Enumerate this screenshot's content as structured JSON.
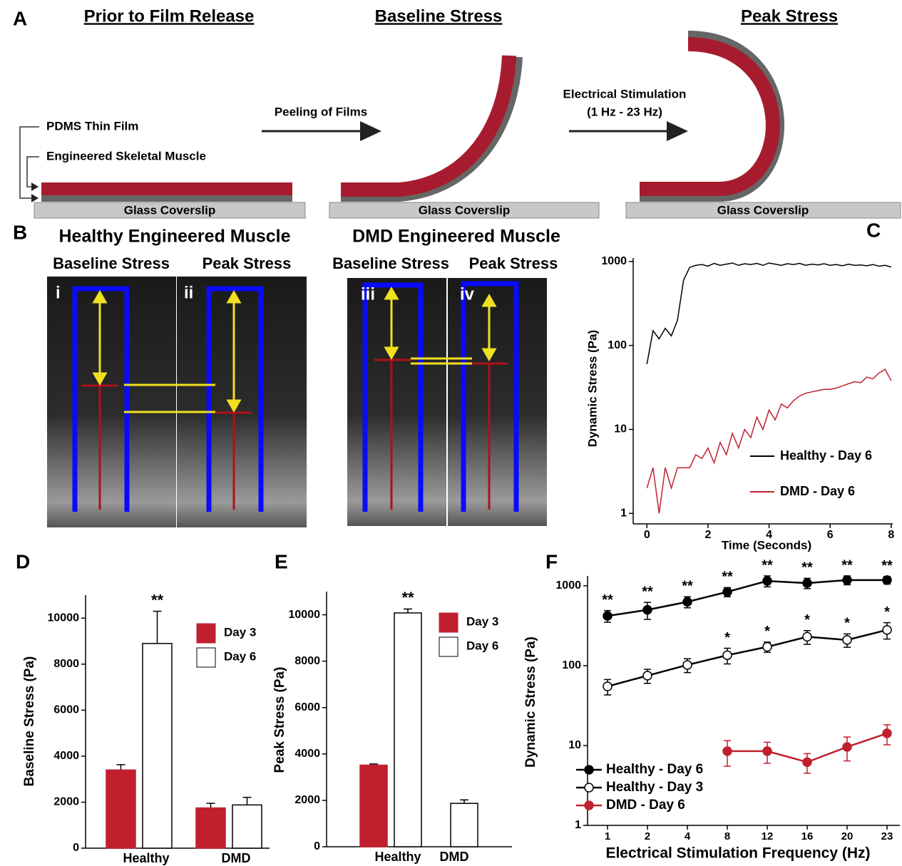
{
  "figure": {
    "panel_a": {
      "label": "A",
      "titles": [
        "Prior to Film Release",
        "Baseline Stress",
        "Peak Stress"
      ],
      "pdms": "PDMS Thin Film",
      "muscle": "Engineered Skeletal Muscle",
      "coverslip": [
        "Glass Coverslip",
        "Glass Coverslip",
        "Glass Coverslip"
      ],
      "step1": "Peeling of Films",
      "step2": [
        "Electrical Stimulation",
        "(1 Hz - 23 Hz)"
      ]
    },
    "panel_b": {
      "label": "B",
      "groups": [
        "Healthy Engineered Muscle",
        "DMD Engineered Muscle"
      ],
      "conditions": [
        "Baseline Stress",
        "Peak Stress",
        "Baseline Stress",
        "Peak Stress"
      ],
      "images": [
        "i",
        "ii",
        "iii",
        "iv"
      ]
    }
  },
  "chart_data": [
    {
      "type": "line",
      "panel_label": "C",
      "x_label": "Time (Seconds)",
      "y_label": "Dynamic Stress (Pa)",
      "log_y": true,
      "x": [
        0,
        0.2,
        0.4,
        0.6,
        0.8,
        1,
        1.2,
        1.4,
        1.6,
        1.8,
        2,
        2.2,
        2.4,
        2.6,
        2.8,
        3,
        3.2,
        3.4,
        3.6,
        3.8,
        4,
        4.2,
        4.4,
        4.6,
        4.8,
        5,
        5.2,
        5.4,
        5.6,
        5.8,
        6,
        6.2,
        6.4,
        6.6,
        6.8,
        7,
        7.2,
        7.4,
        7.6,
        7.8,
        8
      ],
      "series": [
        {
          "name": "Healthy - Day 6",
          "color": "#000000",
          "values": [
            60,
            150,
            120,
            160,
            130,
            200,
            600,
            850,
            900,
            920,
            880,
            950,
            900,
            930,
            960,
            900,
            940,
            920,
            950,
            900,
            960,
            930,
            900,
            940,
            920,
            950,
            900,
            930,
            910,
            940,
            900,
            920,
            890,
            930,
            900,
            910,
            890,
            920,
            880,
            900,
            860
          ]
        },
        {
          "name": "DMD - Day 6",
          "color": "#c0202e",
          "values": [
            2,
            3.5,
            1,
            3.5,
            2,
            3.5,
            3.5,
            3.5,
            5,
            4.5,
            6,
            4,
            7,
            5,
            9,
            6,
            10,
            8,
            14,
            10,
            17,
            13,
            20,
            18,
            22,
            25,
            27,
            28,
            29,
            30,
            30,
            31,
            33,
            35,
            37,
            36,
            42,
            40,
            47,
            52,
            38
          ]
        }
      ],
      "xlim": [
        -0.45,
        8.05
      ],
      "xticks": [
        0,
        2,
        4,
        6,
        8
      ],
      "ylim": [
        0.75,
        1100
      ],
      "yticks": [
        1,
        10,
        100,
        1000
      ]
    },
    {
      "type": "bar",
      "panel_label": "D",
      "y_label": "Baseline Stress (Pa)",
      "categories": [
        "Healthy",
        "DMD"
      ],
      "series": [
        {
          "name": "Day 3",
          "color": "#c0202e",
          "values": [
            3400,
            1750
          ],
          "errors": [
            230,
            200
          ],
          "annotations": [
            null,
            null
          ]
        },
        {
          "name": "Day 6",
          "color": "#ffffff",
          "values": [
            8900,
            1880
          ],
          "errors": [
            1400,
            330
          ],
          "annotations": [
            "**",
            null
          ]
        }
      ],
      "ylim": [
        0,
        11000
      ],
      "yticks": [
        0,
        2000,
        4000,
        6000,
        8000,
        10000
      ]
    },
    {
      "type": "bar",
      "panel_label": "E",
      "y_label": "Peak Stress (Pa)",
      "categories": [
        "Healthy",
        "DMD"
      ],
      "series": [
        {
          "name": "Day 3",
          "color": "#c0202e",
          "values": [
            3520,
            null
          ],
          "errors": [
            50,
            null
          ],
          "annotations": [
            null,
            null
          ]
        },
        {
          "name": "Day 6",
          "color": "#ffffff",
          "values": [
            10080,
            1870
          ],
          "errors": [
            170,
            150
          ],
          "annotations": [
            "**",
            null
          ]
        }
      ],
      "ylim": [
        0,
        11000
      ],
      "yticks": [
        0,
        2000,
        4000,
        6000,
        8000,
        10000
      ]
    },
    {
      "type": "line",
      "panel_label": "F",
      "x_label": "Electrical Stimulation Frequency (Hz)",
      "y_label": "Dynamic Stress (Pa)",
      "log_y": true,
      "categories": [
        "1",
        "2",
        "4",
        "8",
        "12",
        "16",
        "20",
        "23"
      ],
      "series": [
        {
          "name": "Healthy - Day 6",
          "color": "#000000",
          "marker": "filled",
          "values": [
            420,
            500,
            630,
            840,
            1150,
            1080,
            1180,
            1180
          ],
          "errors": [
            70,
            120,
            100,
            110,
            180,
            160,
            150,
            130
          ],
          "annotations": [
            "**",
            "**",
            "**",
            "**",
            "**",
            "**",
            "**",
            "**"
          ]
        },
        {
          "name": "Healthy - Day 3",
          "color": "#000000",
          "marker": "open",
          "values": [
            55,
            75,
            102,
            135,
            172,
            230,
            210,
            280
          ],
          "errors": [
            12,
            15,
            20,
            30,
            25,
            45,
            40,
            65
          ],
          "annotations": [
            null,
            null,
            null,
            "*",
            "*",
            "*",
            "*",
            "*"
          ]
        },
        {
          "name": "DMD - Day 6",
          "color": "#c0202e",
          "marker": "filled",
          "values": [
            null,
            null,
            null,
            8.5,
            8.5,
            6.2,
            9.6,
            14.2
          ],
          "errors": [
            null,
            null,
            null,
            3,
            2.5,
            1.7,
            3.2,
            4
          ],
          "annotations": [
            null,
            null,
            null,
            null,
            null,
            null,
            null,
            null
          ]
        }
      ],
      "ylim": [
        1,
        1330
      ],
      "yticks": [
        1,
        10,
        100,
        1000
      ]
    }
  ]
}
